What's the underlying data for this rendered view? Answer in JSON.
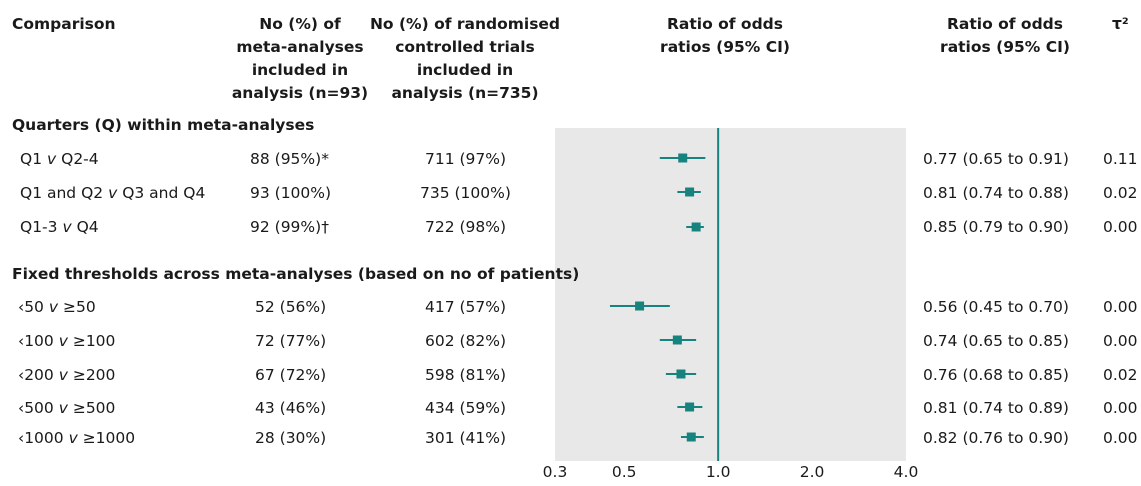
{
  "header": {
    "comparison": "Comparison",
    "ma_col": [
      "No (%) of",
      "meta-analyses",
      "included in",
      "analysis (n=93)"
    ],
    "rct_col": [
      "No (%) of randomised",
      "controlled trials",
      "included in",
      "analysis (n=735)"
    ],
    "plot_col": [
      "Ratio of odds",
      "ratios (95% CI)"
    ],
    "ror_col": [
      "Ratio of odds",
      "ratios (95% CI)"
    ],
    "tau_col": "τ²"
  },
  "sections": [
    {
      "title": "Quarters (Q) within meta-analyses",
      "rows": [
        {
          "label_a": "Q1 ",
          "label_v": "v",
          "label_b": " Q2-4",
          "ma": "88 (95%)*",
          "rct": "711 (97%)",
          "ror": "0.77 (0.65 to 0.91)",
          "tau": "0.11"
        },
        {
          "label_a": "Q1 and Q2 ",
          "label_v": "v",
          "label_b": " Q3 and Q4",
          "ma": "93 (100%)",
          "rct": "735 (100%)",
          "ror": "0.81 (0.74 to 0.88)",
          "tau": "0.02"
        },
        {
          "label_a": "Q1-3 ",
          "label_v": "v",
          "label_b": " Q4",
          "ma": "92 (99%)†",
          "rct": "722 (98%)",
          "ror": "0.85 (0.79 to 0.90)",
          "tau": "0.00"
        }
      ]
    },
    {
      "title": "Fixed thresholds across meta-analyses (based on no of patients)",
      "rows": [
        {
          "label_a": "‹50 ",
          "label_v": "v",
          "label_b": " ≥50",
          "ma": "52 (56%)",
          "rct": "417 (57%)",
          "ror": "0.56 (0.45 to 0.70)",
          "tau": "0.00"
        },
        {
          "label_a": "‹100 ",
          "label_v": "v",
          "label_b": " ≥100",
          "ma": "72 (77%)",
          "rct": "602 (82%)",
          "ror": "0.74 (0.65 to 0.85)",
          "tau": "0.00"
        },
        {
          "label_a": "‹200 ",
          "label_v": "v",
          "label_b": " ≥200",
          "ma": "67 (72%)",
          "rct": "598 (81%)",
          "ror": "0.76 (0.68 to 0.85)",
          "tau": "0.02"
        },
        {
          "label_a": "‹500 ",
          "label_v": "v",
          "label_b": " ≥500",
          "ma": "43 (46%)",
          "rct": "434 (59%)",
          "ror": "0.81 (0.74 to 0.89)",
          "tau": "0.00"
        },
        {
          "label_a": "‹1000 ",
          "label_v": "v",
          "label_b": " ≥1000",
          "ma": "28 (30%)",
          "rct": "301 (41%)",
          "ror": "0.82 (0.76 to 0.90)",
          "tau": "0.00"
        }
      ]
    }
  ],
  "chart_data": {
    "type": "forest",
    "x_scale": "log",
    "xlim": [
      0.3,
      4.0
    ],
    "reference_line": 1.0,
    "x_ticks": [
      "0.3",
      "0.5",
      "1.0",
      "2.0",
      "4.0"
    ],
    "x_tick_values": [
      0.3,
      0.5,
      1.0,
      2.0,
      4.0
    ],
    "marker_color": "#17837e",
    "plot_background": "#e8e8e8",
    "points": [
      {
        "est": 0.77,
        "lo": 0.65,
        "hi": 0.91
      },
      {
        "est": 0.81,
        "lo": 0.74,
        "hi": 0.88
      },
      {
        "est": 0.85,
        "lo": 0.79,
        "hi": 0.9
      },
      {
        "est": 0.56,
        "lo": 0.45,
        "hi": 0.7
      },
      {
        "est": 0.74,
        "lo": 0.65,
        "hi": 0.85
      },
      {
        "est": 0.76,
        "lo": 0.68,
        "hi": 0.85
      },
      {
        "est": 0.81,
        "lo": 0.74,
        "hi": 0.89
      },
      {
        "est": 0.82,
        "lo": 0.76,
        "hi": 0.9
      }
    ]
  }
}
